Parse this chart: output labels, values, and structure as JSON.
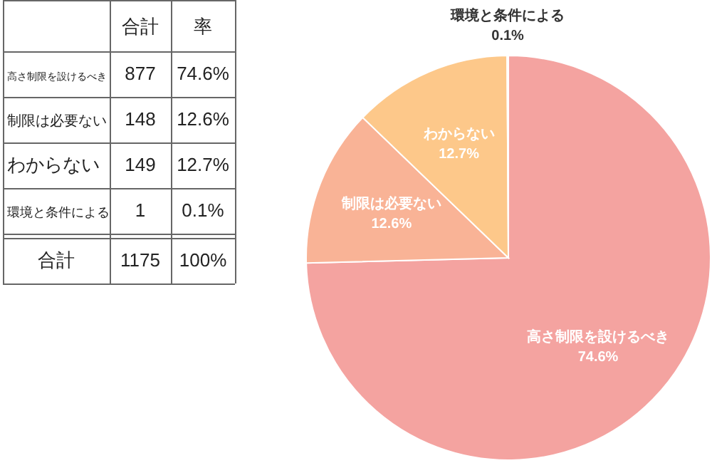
{
  "chart_data": {
    "type": "pie",
    "categories": [
      "高さ制限を設けるべき",
      "制限は必要ない",
      "わからない",
      "環境と条件による"
    ],
    "values": [
      74.6,
      12.6,
      12.7,
      0.1
    ],
    "value_labels": [
      "74.6%",
      "12.6%",
      "12.7%",
      "0.1%"
    ],
    "colors": [
      "#f4a3a0",
      "#f9b396",
      "#fdc88a",
      "#f7d68c"
    ],
    "annotations": [
      "合計",
      "率",
      "877",
      "148",
      "149",
      "1",
      "合計",
      "1175",
      "100%"
    ]
  }
}
